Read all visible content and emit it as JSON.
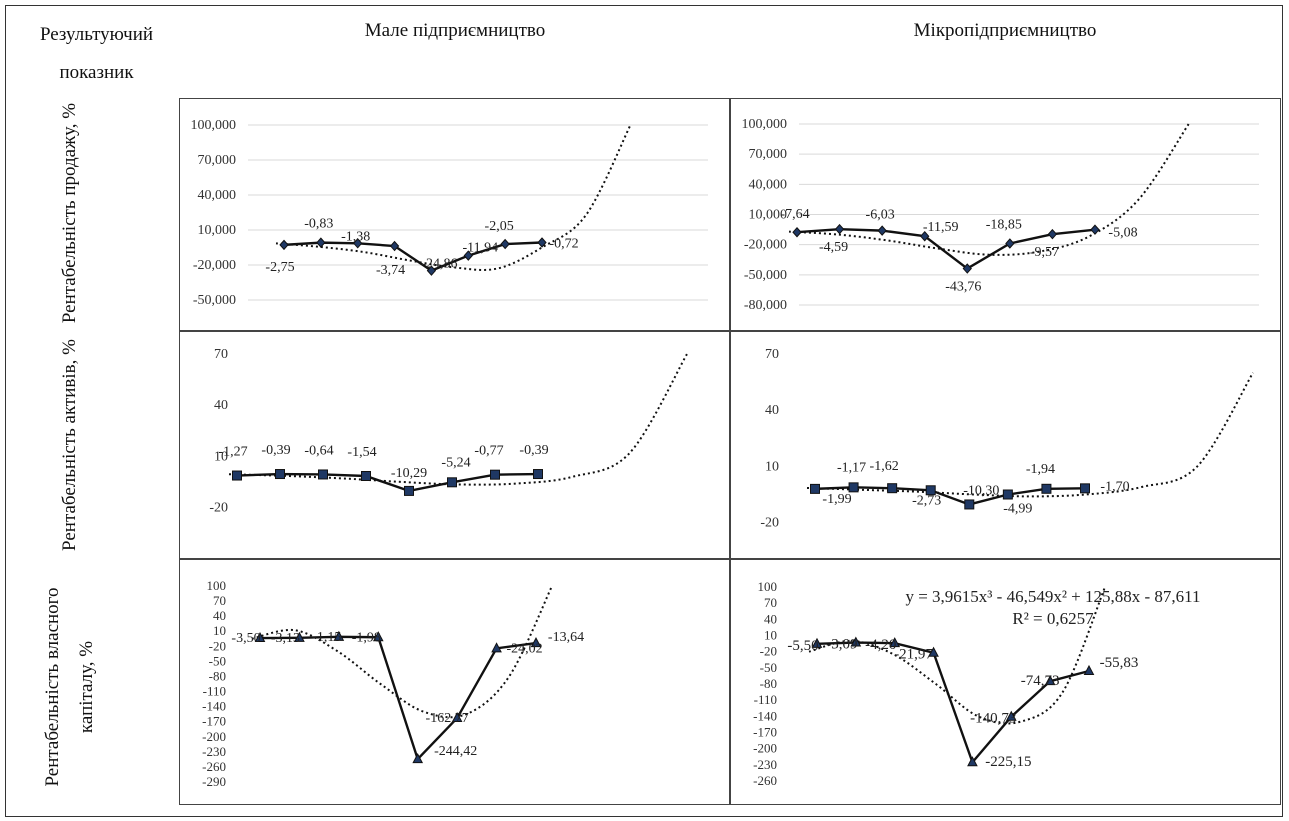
{
  "header": {
    "col0": "Результуючий показник",
    "col1": "Мале підприємництво",
    "col2": "Мікропідприємництво"
  },
  "rows": [
    {
      "label": "Рентабельність продажу, %"
    },
    {
      "label": "Рентабельність активів, %"
    },
    {
      "label": "Рентабельність власного капіталу, %"
    }
  ],
  "chart_data": [
    {
      "id": "c00",
      "type": "line",
      "row": "Рентабельність продажу, %",
      "column": "Мале підприємництво",
      "ylim": [
        -50000,
        100000
      ],
      "yticks": [
        -50000,
        -20000,
        10000,
        40000,
        70000,
        100000
      ],
      "ytick_labels": [
        "-50,000",
        "-20,000",
        "10,000",
        "40,000",
        "70,000",
        "100,000"
      ],
      "values": [
        -2750,
        -830,
        -1380,
        -3740,
        -24860,
        -11940,
        -2050,
        -720
      ],
      "data_labels": [
        "-2,75",
        "-0,83",
        "-1,38",
        "-3,74",
        "-24,86",
        "-11,94",
        "-2,05",
        "-0,72"
      ],
      "trend": [
        -1500,
        -4500,
        -9000,
        -16000,
        -22000,
        -23000,
        -5000,
        23000,
        100000
      ],
      "marker": "diamond",
      "grid": true
    },
    {
      "id": "c01",
      "type": "line",
      "row": "Рентабельність продажу, %",
      "column": "Мікропідприємництво",
      "ylim": [
        -80000,
        100000
      ],
      "yticks": [
        -80000,
        -50000,
        -20000,
        10000,
        40000,
        70000,
        100000
      ],
      "ytick_labels": [
        "-80,000",
        "-50,000",
        "-20,000",
        "10,000",
        "40,000",
        "70,000",
        "100,000"
      ],
      "values": [
        -7640,
        -4590,
        -6030,
        -11590,
        -43760,
        -18850,
        -9570,
        -5080
      ],
      "data_labels": [
        "-7,64",
        "-4,59",
        "-6,03",
        "-11,59",
        "-43,76",
        "-18,85",
        "-9,57",
        "-5,08"
      ],
      "trend": [
        -7000,
        -10000,
        -16000,
        -24000,
        -30000,
        -27000,
        -12000,
        25000,
        100000
      ],
      "marker": "diamond",
      "grid": true
    },
    {
      "id": "c10",
      "type": "line",
      "row": "Рентабельність активів, %",
      "column": "Мале підприємництво",
      "ylim": [
        -25,
        70
      ],
      "yticks": [
        -20,
        10,
        40,
        70
      ],
      "ytick_labels": [
        "-20",
        "10",
        "40",
        "70"
      ],
      "values": [
        -1.27,
        -0.39,
        -0.64,
        -1.54,
        -10.29,
        -5.24,
        -0.77,
        -0.39
      ],
      "data_labels": [
        "-1,27",
        "-0,39",
        "-0,64",
        "-1,54",
        "-10,29",
        "-5,24",
        "-0,77",
        "-0,39"
      ],
      "trend": [
        -0.5,
        -1.5,
        -3.0,
        -5.0,
        -6.5,
        -6.0,
        -2.0,
        12,
        70
      ],
      "marker": "square",
      "grid": false
    },
    {
      "id": "c11",
      "type": "line",
      "row": "Рентабельність активів, %",
      "column": "Мікропідприємництво",
      "ylim": [
        -25,
        70
      ],
      "yticks": [
        -20,
        10,
        40,
        70
      ],
      "ytick_labels": [
        "-20",
        "10",
        "40",
        "70"
      ],
      "values": [
        -1.99,
        -1.17,
        -1.62,
        -2.73,
        -10.3,
        -4.99,
        -1.94,
        -1.7
      ],
      "data_labels": [
        "-1,99",
        "-1,17",
        "-1,62",
        "-2,73",
        "-10,30",
        "-4,99",
        "-1,94",
        "-1,70"
      ],
      "trend": [
        -1.5,
        -2.5,
        -3.5,
        -5.0,
        -6.0,
        -5.0,
        -1.0,
        10,
        60
      ],
      "marker": "square",
      "grid": false
    },
    {
      "id": "c20",
      "type": "line",
      "row": "Рентабельність власного капіталу, %",
      "column": "Мале підприємництво",
      "ylim": [
        -290,
        100
      ],
      "yticks": [
        -290,
        -260,
        -230,
        -200,
        -170,
        -140,
        -110,
        -80,
        -50,
        -20,
        10,
        40,
        70,
        100
      ],
      "ytick_labels": [
        "-290",
        "-260",
        "-230",
        "-200",
        "-170",
        "-140",
        "-110",
        "-80",
        "-50",
        "-20",
        "10",
        "40",
        "70",
        "100"
      ],
      "values": [
        -3.5,
        -3.13,
        -1.15,
        -1.98,
        -244.42,
        -162.77,
        -24.02,
        -13.64
      ],
      "data_labels": [
        "-3,50",
        "-3,13",
        "-1,15",
        "-1,98",
        "-244,42",
        "-162,77",
        "-24,02",
        "-13,64"
      ],
      "trend": [
        -5,
        12,
        -30,
        -95,
        -150,
        -155,
        -80,
        100
      ],
      "marker": "triangle",
      "grid": false
    },
    {
      "id": "c21",
      "type": "line",
      "row": "Рентабельність власного капіталу, %",
      "column": "Мікропідприємництво",
      "ylim": [
        -260,
        100
      ],
      "yticks": [
        -260,
        -230,
        -200,
        -170,
        -140,
        -110,
        -80,
        -50,
        -20,
        10,
        40,
        70,
        100
      ],
      "ytick_labels": [
        "-260",
        "-230",
        "-200",
        "-170",
        "-140",
        "-110",
        "-80",
        "-50",
        "-20",
        "10",
        "40",
        "70",
        "100"
      ],
      "values": [
        -5.5,
        -3.09,
        -4.2,
        -21.97,
        -225.15,
        -140.73,
        -74.73,
        -55.83
      ],
      "data_labels": [
        "-5,50",
        "-3,09",
        "-4,20",
        "-21,97",
        "-225,15",
        "-140,73",
        "-74,73",
        "-55,83"
      ],
      "trend": [
        -20,
        0,
        -25,
        -80,
        -140,
        -150,
        -95,
        100
      ],
      "equation": "y = 3,9615x³ - 46,549x² + 125,88x - 87,611",
      "r2": "R² = 0,6257",
      "marker": "triangle",
      "grid": false
    }
  ]
}
